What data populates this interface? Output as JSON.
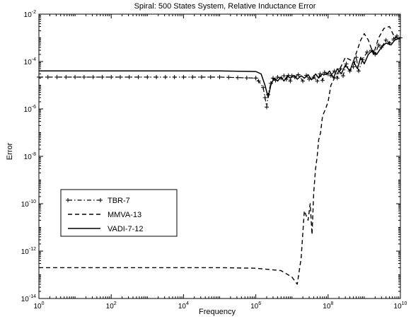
{
  "chart_data": {
    "type": "line",
    "title": "Spiral: 500 States System, Relative Inductance Error",
    "xlabel": "Frequency",
    "ylabel": "Error",
    "x_scale": "log",
    "y_scale": "log",
    "xlim": [
      1,
      10000000000
    ],
    "ylim": [
      1e-14,
      0.01
    ],
    "x_ticks": [
      {
        "value": 1,
        "base": "10",
        "exp": "0"
      },
      {
        "value": 100,
        "base": "10",
        "exp": "2"
      },
      {
        "value": 10000,
        "base": "10",
        "exp": "4"
      },
      {
        "value": 1000000,
        "base": "10",
        "exp": "6"
      },
      {
        "value": 100000000,
        "base": "10",
        "exp": "8"
      },
      {
        "value": 10000000000,
        "base": "10",
        "exp": "10"
      }
    ],
    "y_ticks": [
      {
        "value": 0.01,
        "base": "10",
        "exp": "-2"
      },
      {
        "value": 0.0001,
        "base": "10",
        "exp": "-4"
      },
      {
        "value": 1e-06,
        "base": "10",
        "exp": "-6"
      },
      {
        "value": 1e-08,
        "base": "10",
        "exp": "-8"
      },
      {
        "value": 1e-10,
        "base": "10",
        "exp": "-10"
      },
      {
        "value": 1e-12,
        "base": "10",
        "exp": "-12"
      },
      {
        "value": 1e-14,
        "base": "10",
        "exp": "-14"
      }
    ],
    "grid": false,
    "legend_position": "lower-left",
    "series": [
      {
        "name": "TBR-7",
        "style": "dash-dot with plus markers",
        "x": [
          1,
          100000,
          1000000,
          1200000,
          1600000,
          1800000,
          2000000,
          2200000,
          2600000,
          3000000,
          3500000,
          4000000,
          5000000,
          6000000,
          7000000,
          8000000,
          9000000,
          10000000,
          12000000,
          15000000,
          20000000,
          25000000,
          30000000,
          40000000,
          50000000,
          60000000,
          70000000,
          80000000,
          100000000,
          120000000,
          150000000,
          180000000,
          220000000,
          260000000,
          320000000,
          400000000,
          500000000,
          600000000,
          700000000,
          900000000,
          1200000000,
          1600000000,
          2000000000,
          2500000000,
          3000000000,
          4000000000,
          5000000000,
          6500000000,
          8000000000,
          10000000000
        ],
        "y": [
          2.2e-05,
          2.2e-05,
          2e-05,
          1.5e-05,
          8e-06,
          3e-06,
          1.2e-06,
          4e-06,
          1.2e-05,
          2e-05,
          1.6e-05,
          2.2e-05,
          2e-05,
          2.5e-05,
          1.8e-05,
          2.6e-05,
          1.5e-05,
          2.5e-05,
          2.2e-05,
          2.8e-05,
          1.5e-05,
          2.6e-05,
          1.8e-05,
          2.2e-05,
          1.5e-05,
          3e-05,
          1.6e-05,
          3.5e-05,
          3e-05,
          2.5e-05,
          4e-05,
          2e-05,
          5e-05,
          2.5e-05,
          8e-05,
          4e-05,
          6e-05,
          0.00015,
          4e-05,
          0.00012,
          0.00025,
          0.0003,
          0.0002,
          0.0005,
          0.0004,
          0.0008,
          0.0006,
          0.0009,
          0.0012,
          0.001
        ]
      },
      {
        "name": "MMVA-13",
        "style": "dashed",
        "x": [
          1,
          100000,
          1000000,
          5000000,
          10000000,
          14000000,
          18000000,
          22000000,
          28000000,
          32000000,
          36000000,
          40000000,
          45000000,
          50000000,
          55000000,
          62000000,
          70000000,
          85000000,
          100000000,
          120000000,
          150000000,
          200000000,
          300000000,
          500000000,
          800000000,
          1000000000,
          1300000000,
          1800000000,
          2500000000,
          3500000000,
          5000000000,
          7000000000,
          10000000000
        ],
        "y": [
          2e-13,
          2e-13,
          1.9e-13,
          1.5e-13,
          8e-14,
          4e-14,
          5e-13,
          5e-11,
          2e-11,
          1e-10,
          5e-12,
          3e-10,
          3e-09,
          1e-08,
          5e-08,
          1e-07,
          5e-07,
          1e-06,
          2e-06,
          1e-05,
          2e-05,
          4e-05,
          0.00015,
          0.0001,
          0.0008,
          0.0015,
          0.0008,
          0.0002,
          0.001,
          0.0025,
          0.003,
          0.001,
          0.001
        ]
      },
      {
        "name": "VADI-7-12",
        "style": "solid",
        "x": [
          1,
          100000,
          1000000,
          1400000,
          1800000,
          2200000,
          2600000,
          3200000,
          4000000,
          5000000,
          6000000,
          7500000,
          9000000,
          11000000,
          14000000,
          18000000,
          22000000,
          28000000,
          35000000,
          45000000,
          55000000,
          70000000,
          90000000,
          110000000,
          140000000,
          180000000,
          230000000,
          300000000,
          400000000,
          500000000,
          650000000,
          800000000,
          1000000000,
          1300000000,
          1700000000,
          2200000000,
          3000000000,
          4000000000,
          5500000000,
          7000000000,
          10000000000
        ],
        "y": [
          4e-05,
          4e-05,
          3.8e-05,
          3e-05,
          1e-05,
          3e-06,
          1e-05,
          2e-05,
          1.5e-05,
          2.2e-05,
          1.5e-05,
          2.5e-05,
          2e-05,
          2.6e-05,
          1.8e-05,
          2.5e-05,
          2e-05,
          2.8e-05,
          1.7e-05,
          3e-05,
          2e-05,
          3e-05,
          2.8e-05,
          4e-05,
          2e-05,
          5e-05,
          3e-05,
          7e-05,
          4e-05,
          0.0001,
          5e-05,
          0.00015,
          8e-05,
          0.0002,
          0.0003,
          0.0002,
          0.0004,
          0.0006,
          0.0005,
          0.0008,
          0.001
        ]
      }
    ]
  }
}
